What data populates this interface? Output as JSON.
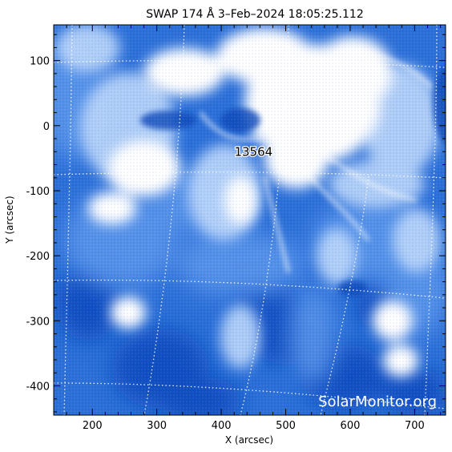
{
  "title": "SWAP 174 Å  3–Feb–2024 18:05:25.112",
  "axes": {
    "xlabel": "X (arcsec)",
    "ylabel": "Y (arcsec)",
    "xlim": [
      140,
      748
    ],
    "ylim": [
      -445,
      155
    ],
    "xticks": [
      200,
      300,
      400,
      500,
      600,
      700
    ],
    "yticks": [
      100,
      0,
      -100,
      -200,
      -300,
      -400
    ]
  },
  "region": {
    "number": "13564",
    "x": 450,
    "y": -40
  },
  "watermark": "SolarMonitor.org",
  "colors": {
    "sun_bright": "#ffffff",
    "sun_mid": "#6fa8f2",
    "sun_dark": "#0f4fc4",
    "grid": "#ffffff",
    "frame": "#000000"
  }
}
